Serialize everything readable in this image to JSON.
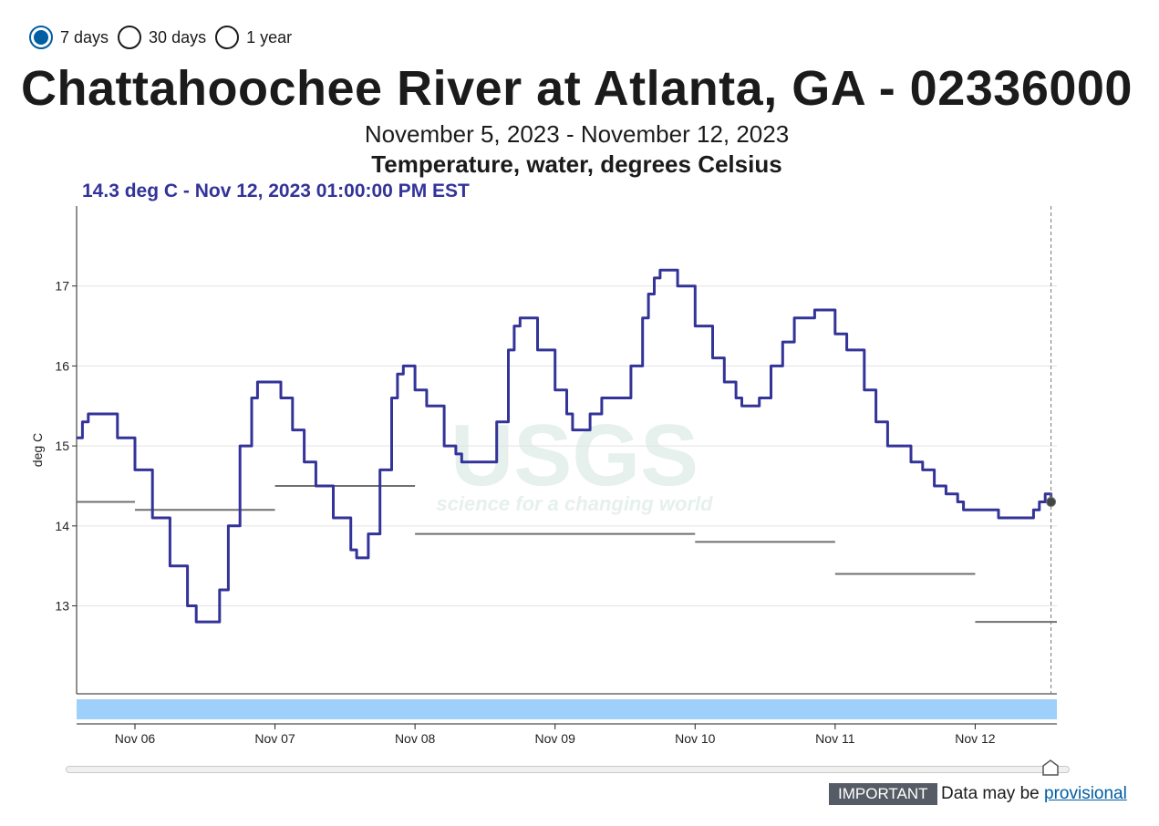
{
  "period_options": [
    {
      "label": "7 days",
      "checked": true
    },
    {
      "label": "30 days",
      "checked": false
    },
    {
      "label": "1 year",
      "checked": false
    }
  ],
  "title": "Chattahoochee River at Atlanta, GA - 02336000",
  "date_range": "November 5, 2023 - November 12, 2023",
  "parameter": "Temperature, water, degrees Celsius",
  "tooltip": "14.3 deg C - Nov 12, 2023 01:00:00 PM EST",
  "notice": {
    "badge": "IMPORTANT",
    "text": "Data may be",
    "link": "provisional"
  },
  "watermark": {
    "logo": "USGS",
    "tagline": "science for a changing world"
  },
  "colors": {
    "series": "#333399",
    "median": "#6f6f6f",
    "brush": "#9fd0fb",
    "accent": "#005ea2",
    "watermark": "#e6f0ec"
  },
  "chart_data": {
    "type": "line",
    "ylabel": "deg C",
    "ylim": [
      11.9,
      18.0
    ],
    "yticks": [
      13,
      14,
      15,
      16,
      17
    ],
    "xlim": [
      "2023-11-05 14:00",
      "2023-11-12 14:00"
    ],
    "xticks": [
      "Nov 06",
      "Nov 07",
      "Nov 08",
      "Nov 09",
      "Nov 10",
      "Nov 11",
      "Nov 12"
    ],
    "grid": true,
    "series": [
      {
        "points": [
          [
            "2023-11-05 14:00",
            15.1
          ],
          [
            "2023-11-05 15:00",
            15.3
          ],
          [
            "2023-11-05 16:00",
            15.4
          ],
          [
            "2023-11-05 18:00",
            15.4
          ],
          [
            "2023-11-05 21:00",
            15.1
          ],
          [
            "2023-11-06 00:00",
            14.7
          ],
          [
            "2023-11-06 03:00",
            14.1
          ],
          [
            "2023-11-06 06:00",
            13.5
          ],
          [
            "2023-11-06 09:00",
            13.0
          ],
          [
            "2023-11-06 10:30",
            12.8
          ],
          [
            "2023-11-06 13:00",
            12.8
          ],
          [
            "2023-11-06 14:30",
            13.2
          ],
          [
            "2023-11-06 16:00",
            14.0
          ],
          [
            "2023-11-06 18:00",
            15.0
          ],
          [
            "2023-11-06 20:00",
            15.6
          ],
          [
            "2023-11-06 21:00",
            15.8
          ],
          [
            "2023-11-06 23:00",
            15.8
          ],
          [
            "2023-11-07 01:00",
            15.6
          ],
          [
            "2023-11-07 03:00",
            15.2
          ],
          [
            "2023-11-07 05:00",
            14.8
          ],
          [
            "2023-11-07 07:00",
            14.5
          ],
          [
            "2023-11-07 10:00",
            14.1
          ],
          [
            "2023-11-07 13:00",
            13.7
          ],
          [
            "2023-11-07 14:00",
            13.6
          ],
          [
            "2023-11-07 15:00",
            13.6
          ],
          [
            "2023-11-07 16:00",
            13.9
          ],
          [
            "2023-11-07 18:00",
            14.7
          ],
          [
            "2023-11-07 20:00",
            15.6
          ],
          [
            "2023-11-07 21:00",
            15.9
          ],
          [
            "2023-11-07 22:00",
            16.0
          ],
          [
            "2023-11-08 00:00",
            15.7
          ],
          [
            "2023-11-08 02:00",
            15.5
          ],
          [
            "2023-11-08 05:00",
            15.0
          ],
          [
            "2023-11-08 07:00",
            14.9
          ],
          [
            "2023-11-08 08:00",
            14.8
          ],
          [
            "2023-11-08 12:00",
            14.8
          ],
          [
            "2023-11-08 14:00",
            15.3
          ],
          [
            "2023-11-08 16:00",
            16.2
          ],
          [
            "2023-11-08 17:00",
            16.5
          ],
          [
            "2023-11-08 18:00",
            16.6
          ],
          [
            "2023-11-08 19:00",
            16.6
          ],
          [
            "2023-11-08 21:00",
            16.2
          ],
          [
            "2023-11-09 00:00",
            15.7
          ],
          [
            "2023-11-09 02:00",
            15.4
          ],
          [
            "2023-11-09 03:00",
            15.2
          ],
          [
            "2023-11-09 05:00",
            15.2
          ],
          [
            "2023-11-09 06:00",
            15.4
          ],
          [
            "2023-11-09 08:00",
            15.6
          ],
          [
            "2023-11-09 11:00",
            15.6
          ],
          [
            "2023-11-09 13:00",
            16.0
          ],
          [
            "2023-11-09 15:00",
            16.6
          ],
          [
            "2023-11-09 16:00",
            16.9
          ],
          [
            "2023-11-09 17:00",
            17.1
          ],
          [
            "2023-11-09 18:00",
            17.2
          ],
          [
            "2023-11-09 19:00",
            17.2
          ],
          [
            "2023-11-09 21:00",
            17.0
          ],
          [
            "2023-11-10 00:00",
            16.5
          ],
          [
            "2023-11-10 03:00",
            16.1
          ],
          [
            "2023-11-10 05:00",
            15.8
          ],
          [
            "2023-11-10 07:00",
            15.6
          ],
          [
            "2023-11-10 08:00",
            15.5
          ],
          [
            "2023-11-10 10:00",
            15.5
          ],
          [
            "2023-11-10 11:00",
            15.6
          ],
          [
            "2023-11-10 13:00",
            16.0
          ],
          [
            "2023-11-10 15:00",
            16.3
          ],
          [
            "2023-11-10 17:00",
            16.6
          ],
          [
            "2023-11-10 20:00",
            16.6
          ],
          [
            "2023-11-10 20:30",
            16.7
          ],
          [
            "2023-11-10 21:30",
            16.7
          ],
          [
            "2023-11-11 00:00",
            16.4
          ],
          [
            "2023-11-11 02:00",
            16.2
          ],
          [
            "2023-11-11 05:00",
            15.7
          ],
          [
            "2023-11-11 07:00",
            15.3
          ],
          [
            "2023-11-11 09:00",
            15.0
          ],
          [
            "2023-11-11 11:00",
            15.0
          ],
          [
            "2023-11-11 13:00",
            14.8
          ],
          [
            "2023-11-11 15:00",
            14.7
          ],
          [
            "2023-11-11 17:00",
            14.5
          ],
          [
            "2023-11-11 19:00",
            14.4
          ],
          [
            "2023-11-11 21:00",
            14.3
          ],
          [
            "2023-11-11 22:00",
            14.2
          ],
          [
            "2023-11-12 03:00",
            14.2
          ],
          [
            "2023-11-12 04:00",
            14.1
          ],
          [
            "2023-11-12 08:00",
            14.1
          ],
          [
            "2023-11-12 10:00",
            14.2
          ],
          [
            "2023-11-12 11:00",
            14.3
          ],
          [
            "2023-11-12 12:00",
            14.4
          ],
          [
            "2023-11-12 13:00",
            14.3
          ]
        ]
      }
    ],
    "medians": [
      {
        "start": "2023-11-05 14:00",
        "end": "2023-11-06 00:00",
        "value": 14.3
      },
      {
        "start": "2023-11-06 00:00",
        "end": "2023-11-07 00:00",
        "value": 14.2
      },
      {
        "start": "2023-11-07 00:00",
        "end": "2023-11-08 00:00",
        "value": 14.5
      },
      {
        "start": "2023-11-08 00:00",
        "end": "2023-11-10 00:00",
        "value": 13.9
      },
      {
        "start": "2023-11-10 00:00",
        "end": "2023-11-11 00:00",
        "value": 13.8
      },
      {
        "start": "2023-11-11 00:00",
        "end": "2023-11-12 00:00",
        "value": 13.4
      },
      {
        "start": "2023-11-12 00:00",
        "end": "2023-11-12 14:00",
        "value": 12.8
      }
    ],
    "highlight": {
      "x": "2023-11-12 13:00",
      "y": 14.3
    }
  }
}
